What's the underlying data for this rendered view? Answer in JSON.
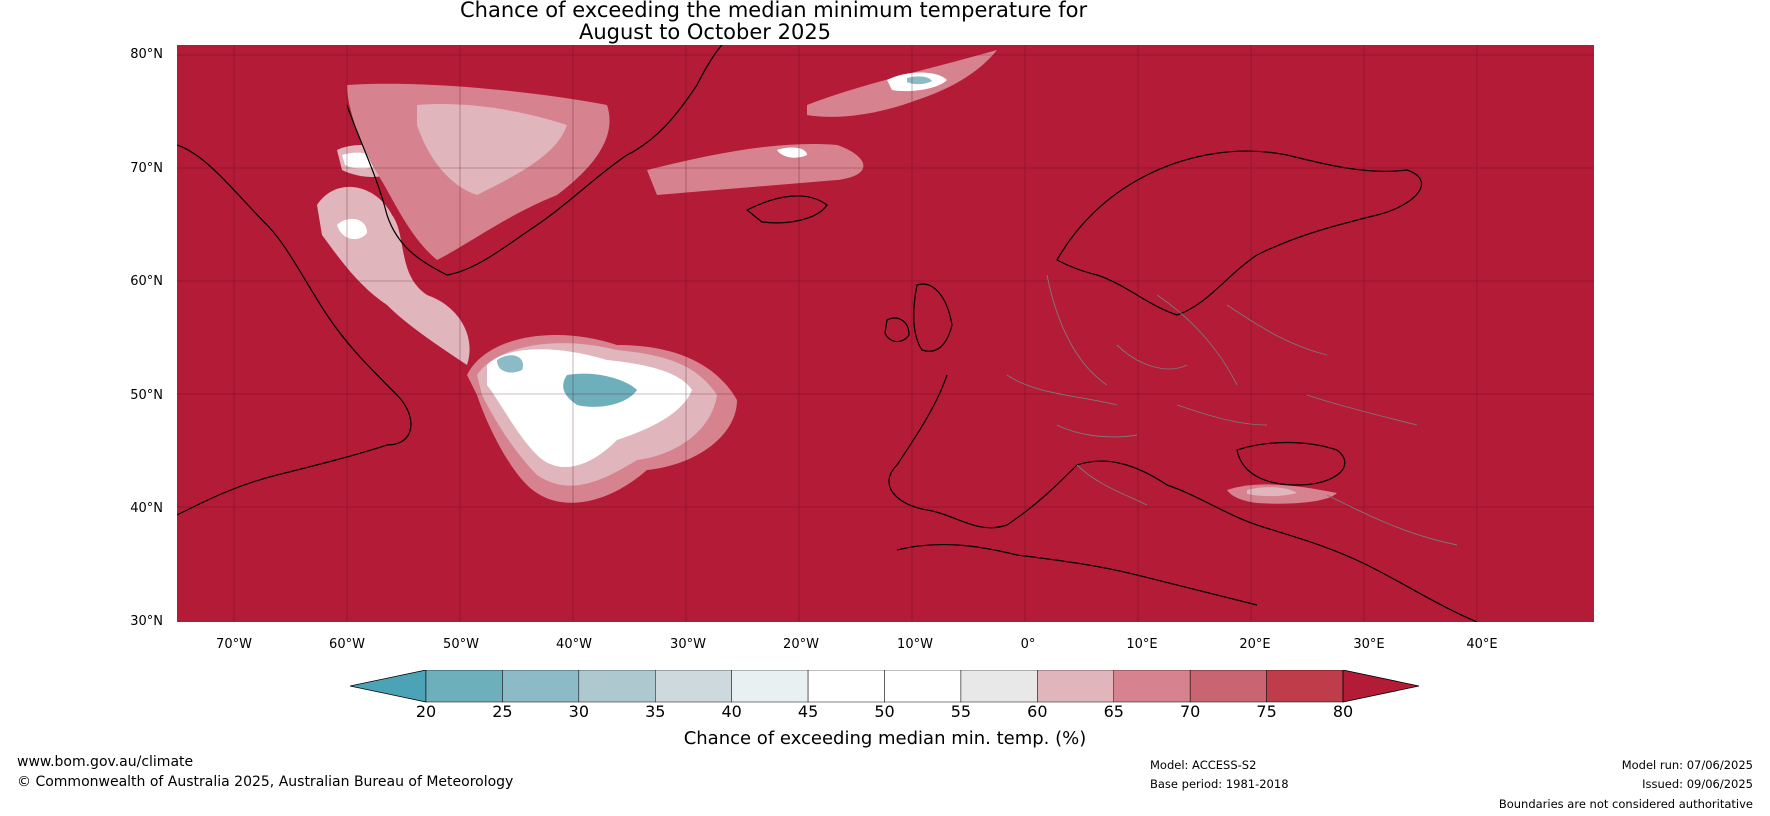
{
  "title": {
    "line1": "Chance of exceeding the median minimum temperature for",
    "line2": "August to October 2025"
  },
  "map": {
    "background_color": "#b31b36",
    "lat_labels": [
      "80°N",
      "70°N",
      "60°N",
      "50°N",
      "40°N",
      "30°N"
    ],
    "lon_labels": [
      "70°W",
      "60°W",
      "50°W",
      "40°W",
      "30°W",
      "20°W",
      "10°W",
      "0°",
      "10°E",
      "20°E",
      "30°E",
      "40°E"
    ],
    "grid": true
  },
  "colorbar": {
    "ticks": [
      "20",
      "25",
      "30",
      "35",
      "40",
      "45",
      "50",
      "55",
      "60",
      "65",
      "70",
      "75",
      "80"
    ],
    "colors": [
      "#4ba3b5",
      "#6eafbc",
      "#8cbac6",
      "#adc8cf",
      "#cdd9dd",
      "#e8f0f1",
      "#ffffff",
      "#ffffff",
      "#e8e8e8",
      "#e0b5bc",
      "#d6828f",
      "#c86571",
      "#bf3c4b",
      "#b31b36"
    ],
    "label": "Chance of exceeding median min. temp. (%)"
  },
  "footer": {
    "website": "www.bom.gov.au/climate",
    "copyright": "© Commonwealth of Australia 2025, Australian Bureau of Meteorology",
    "model": "Model: ACCESS-S2",
    "base_period": "Base period: 1981-2018",
    "model_run": "Model run: 07/06/2025",
    "issued": "Issued: 09/06/2025",
    "disclaimer": "Boundaries are not considered authoritative"
  }
}
